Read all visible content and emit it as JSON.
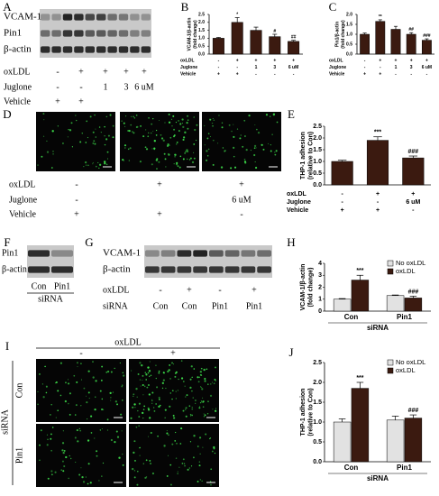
{
  "figure": {
    "A": {
      "letter": "A",
      "bands": [
        "VCAM-1",
        "Pin1",
        "β-actin"
      ],
      "conditions": [
        {
          "label": "oxLDL",
          "cells": [
            "-",
            "+",
            "+",
            "+",
            "+"
          ]
        },
        {
          "label": "Juglone",
          "cells": [
            "-",
            "-",
            "1",
            "3",
            "6 uM"
          ]
        },
        {
          "label": "Vehicle",
          "cells": [
            "+",
            "+",
            null,
            null,
            null
          ]
        }
      ]
    },
    "D": {
      "letter": "D",
      "conditions": [
        {
          "label": "oxLDL",
          "cells": [
            "-",
            "+",
            "+"
          ]
        },
        {
          "label": "Juglone",
          "cells": [
            "-",
            null,
            "6 uM"
          ]
        },
        {
          "label": "Vehicle",
          "cells": [
            "+",
            "+",
            "-"
          ]
        }
      ]
    },
    "F": {
      "letter": "F",
      "bands": [
        "Pin1",
        "β-actin"
      ],
      "lanes": [
        "Con",
        "Pin1"
      ],
      "xlabel": "siRNA"
    },
    "G": {
      "letter": "G",
      "bands": [
        "VCAM-1",
        "β-actin"
      ],
      "conditions": [
        {
          "label": "oxLDL",
          "cells": [
            "-",
            "+",
            "-",
            "+"
          ]
        },
        {
          "label": "siRNA",
          "cells": [
            "Con",
            "Con",
            "Pin1",
            "Pin1"
          ]
        }
      ]
    },
    "I": {
      "letter": "I",
      "column_header": "oxLDL",
      "columns": [
        "-",
        "+"
      ],
      "rows": [
        "Con",
        "Pin1"
      ],
      "row_header": "siRNA"
    }
  },
  "chart_data": [
    {
      "type": "bar",
      "panel": "B",
      "ylabel": [
        "VCAM-1/β-actin",
        "(fold change)"
      ],
      "values": [
        1.0,
        2.0,
        1.5,
        1.1,
        0.8
      ],
      "errors": [
        0.05,
        0.3,
        0.2,
        0.15,
        0.07
      ],
      "annotations": [
        null,
        "*",
        null,
        "#",
        "##"
      ],
      "color": "#3b1a10",
      "ylim": [
        0,
        2.5
      ],
      "yticks": [
        {
          "value": 0,
          "label": "0.0"
        },
        {
          "value": 0.5,
          "label": "0.5"
        },
        {
          "value": 1,
          "label": "1.0"
        },
        {
          "value": 1.5,
          "label": "1.5"
        },
        {
          "value": 2,
          "label": "2.0"
        },
        {
          "value": 2.5,
          "label": "2.5"
        }
      ],
      "conditions": [
        {
          "label": "oxLDL",
          "cells": [
            "-",
            "+",
            "+",
            "+",
            "+"
          ]
        },
        {
          "label": "Juglone",
          "cells": [
            "-",
            "-",
            "1",
            "3",
            "6 uM"
          ]
        },
        {
          "label": "Vehicle",
          "cells": [
            "+",
            "+",
            "-",
            "-",
            "-"
          ]
        }
      ]
    },
    {
      "type": "bar",
      "panel": "C",
      "ylabel": [
        "Pin1/β-actin",
        "(fold change)"
      ],
      "values": [
        1.0,
        1.65,
        1.25,
        1.0,
        0.7
      ],
      "errors": [
        0.06,
        0.08,
        0.15,
        0.08,
        0.07
      ],
      "annotations": [
        null,
        "**",
        null,
        "##",
        "###"
      ],
      "color": "#3b1a10",
      "ylim": [
        0,
        2
      ],
      "yticks": [
        {
          "value": 0,
          "label": "0.0"
        },
        {
          "value": 0.5,
          "label": "0.5"
        },
        {
          "value": 1,
          "label": "1.0"
        },
        {
          "value": 1.5,
          "label": "1.5"
        },
        {
          "value": 2,
          "label": "2.0"
        }
      ],
      "conditions": [
        {
          "label": "oxLDL",
          "cells": [
            "-",
            "+",
            "+",
            "+",
            "+"
          ]
        },
        {
          "label": "Juglone",
          "cells": [
            "-",
            "-",
            "1",
            "3",
            "6 uM"
          ]
        },
        {
          "label": "Vehicle",
          "cells": [
            "+",
            "+",
            "-",
            "-",
            "-"
          ]
        }
      ]
    },
    {
      "type": "bar",
      "panel": "E",
      "ylabel": [
        "THP-1 adhesion",
        "(relative to Con)"
      ],
      "values": [
        1.0,
        1.9,
        1.15
      ],
      "errors": [
        0.05,
        0.15,
        0.08
      ],
      "annotations": [
        null,
        "***",
        "###"
      ],
      "color": "#3b1a10",
      "ylim": [
        0,
        2.5
      ],
      "yticks": [
        {
          "value": 0,
          "label": "0.0"
        },
        {
          "value": 0.5,
          "label": "0.5"
        },
        {
          "value": 1,
          "label": "1.0"
        },
        {
          "value": 1.5,
          "label": "1.5"
        },
        {
          "value": 2,
          "label": "2.0"
        },
        {
          "value": 2.5,
          "label": "2.5"
        }
      ],
      "conditions": [
        {
          "label": "oxLDL",
          "cells": [
            "-",
            "+",
            "+"
          ]
        },
        {
          "label": "Juglone",
          "cells": [
            "-",
            "-",
            "6 uM"
          ]
        },
        {
          "label": "Vehicle",
          "cells": [
            "+",
            "+",
            "-"
          ]
        }
      ]
    },
    {
      "type": "bar",
      "panel": "H",
      "ylabel": [
        "VCAM-1/β-actin",
        "(fold change)"
      ],
      "categories": [
        "Con",
        "Pin1"
      ],
      "xlabel": "siRNA",
      "legend": "top-right",
      "series": [
        {
          "name": "No oxLDL",
          "color": "#e2e2e2",
          "values": [
            1.0,
            1.3
          ],
          "errors": [
            0.05,
            0.05
          ],
          "annotations": [
            null,
            null
          ]
        },
        {
          "name": "oxLDL",
          "color": "#3b1a10",
          "values": [
            2.6,
            1.1
          ],
          "errors": [
            0.4,
            0.15
          ],
          "annotations": [
            "***",
            "###"
          ]
        }
      ],
      "ylim": [
        0,
        4
      ],
      "yticks": [
        0,
        1,
        2,
        3,
        4
      ]
    },
    {
      "type": "bar",
      "panel": "J",
      "ylabel": [
        "THP-1 adhesion",
        "(relative to Con)"
      ],
      "categories": [
        "Con",
        "Pin1"
      ],
      "xlabel": "siRNA",
      "legend": "top-right",
      "series": [
        {
          "name": "No oxLDL",
          "color": "#e2e2e2",
          "values": [
            1.0,
            1.05
          ],
          "errors": [
            0.08,
            0.1
          ],
          "annotations": [
            null,
            null
          ]
        },
        {
          "name": "oxLDL",
          "color": "#3b1a10",
          "values": [
            1.85,
            1.1
          ],
          "errors": [
            0.15,
            0.08
          ],
          "annotations": [
            "***",
            "###"
          ]
        }
      ],
      "ylim": [
        0,
        2.5
      ],
      "yticks": [
        {
          "value": 0,
          "label": "0.0"
        },
        {
          "value": 0.5,
          "label": "0.5"
        },
        {
          "value": 1,
          "label": "1.0"
        },
        {
          "value": 1.5,
          "label": "1.5"
        },
        {
          "value": 2,
          "label": "2.0"
        },
        {
          "value": 2.5,
          "label": "2.5"
        }
      ]
    }
  ]
}
